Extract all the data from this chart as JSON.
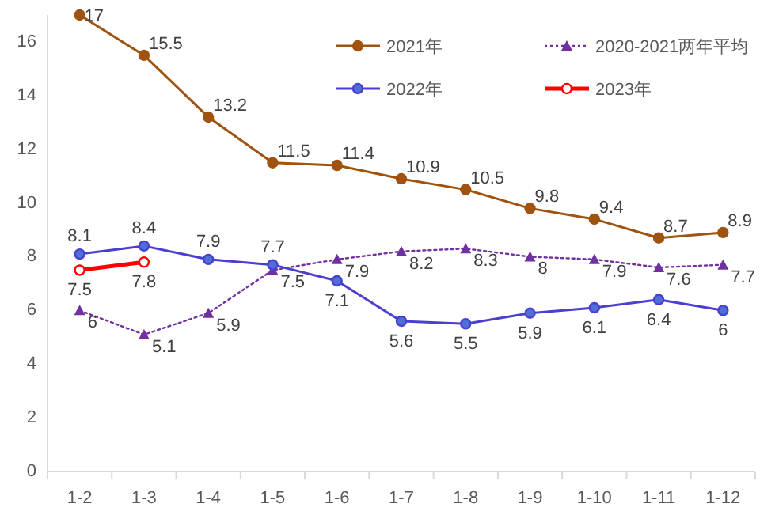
{
  "chart_data": {
    "type": "line",
    "categories": [
      "1-2",
      "1-3",
      "1-4",
      "1-5",
      "1-6",
      "1-7",
      "1-8",
      "1-9",
      "1-10",
      "1-11",
      "1-12"
    ],
    "series": [
      {
        "name": "2021年",
        "color": "#a0520f",
        "marker": "circle",
        "line_style": "solid",
        "values": [
          17,
          15.5,
          13.2,
          11.5,
          11.4,
          10.9,
          10.5,
          9.8,
          9.4,
          8.7,
          8.9
        ]
      },
      {
        "name": "2020-2021两年平均",
        "color": "#7030a0",
        "marker": "triangle",
        "line_style": "dotted",
        "values": [
          6,
          5.1,
          5.9,
          7.5,
          7.9,
          8.2,
          8.3,
          8,
          7.9,
          7.6,
          7.7
        ]
      },
      {
        "name": "2022年",
        "color": "#4a3fcf",
        "marker": "circle",
        "line_style": "solid",
        "values": [
          8.1,
          8.4,
          7.9,
          7.7,
          7.1,
          5.6,
          5.5,
          5.9,
          6.1,
          6.4,
          6
        ]
      },
      {
        "name": "2023年",
        "color": "#ff0000",
        "marker": "circle",
        "line_style": "solid",
        "values": [
          7.5,
          7.8,
          null,
          null,
          null,
          null,
          null,
          null,
          null,
          null,
          null
        ]
      }
    ],
    "ylim": [
      0,
      17
    ],
    "yticks": [
      0,
      2,
      4,
      6,
      8,
      10,
      12,
      14,
      16
    ],
    "data_labels": true,
    "legend": "top right"
  }
}
